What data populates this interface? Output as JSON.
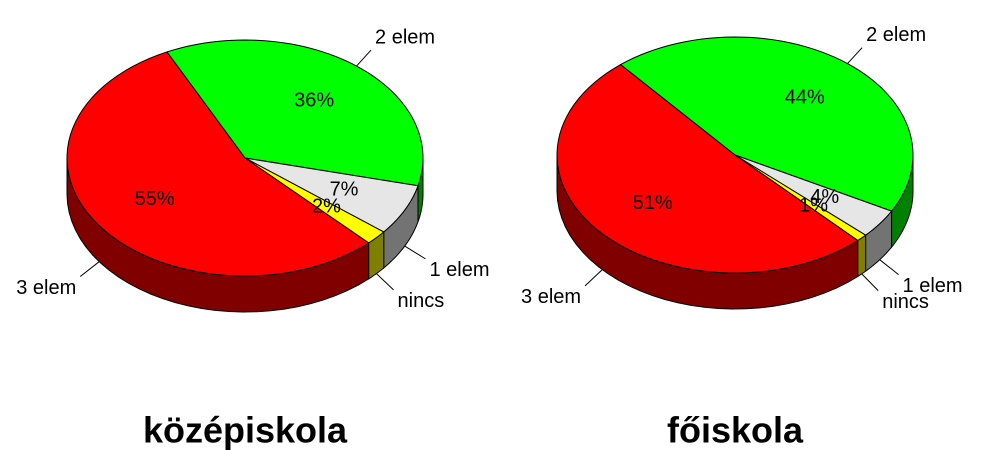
{
  "chart_data": [
    {
      "type": "pie",
      "title": "középiskola",
      "categories": [
        "2 elem",
        "1 elem",
        "nincs",
        "3 elem"
      ],
      "values": [
        36,
        7,
        2,
        55
      ],
      "value_labels": [
        "36%",
        "7%",
        "2%",
        "55%"
      ],
      "colors": [
        "#00ff00",
        "#e6e6e6",
        "#ffff00",
        "#ff0000"
      ]
    },
    {
      "type": "pie",
      "title": "főiskola",
      "categories": [
        "2 elem",
        "1 elem",
        "nincs",
        "3 elem"
      ],
      "values": [
        44,
        4,
        1,
        51
      ],
      "value_labels": [
        "44%",
        "4%",
        "1%",
        "51%"
      ],
      "colors": [
        "#00ff00",
        "#e6e6e6",
        "#ffff00",
        "#ff0000"
      ]
    }
  ]
}
